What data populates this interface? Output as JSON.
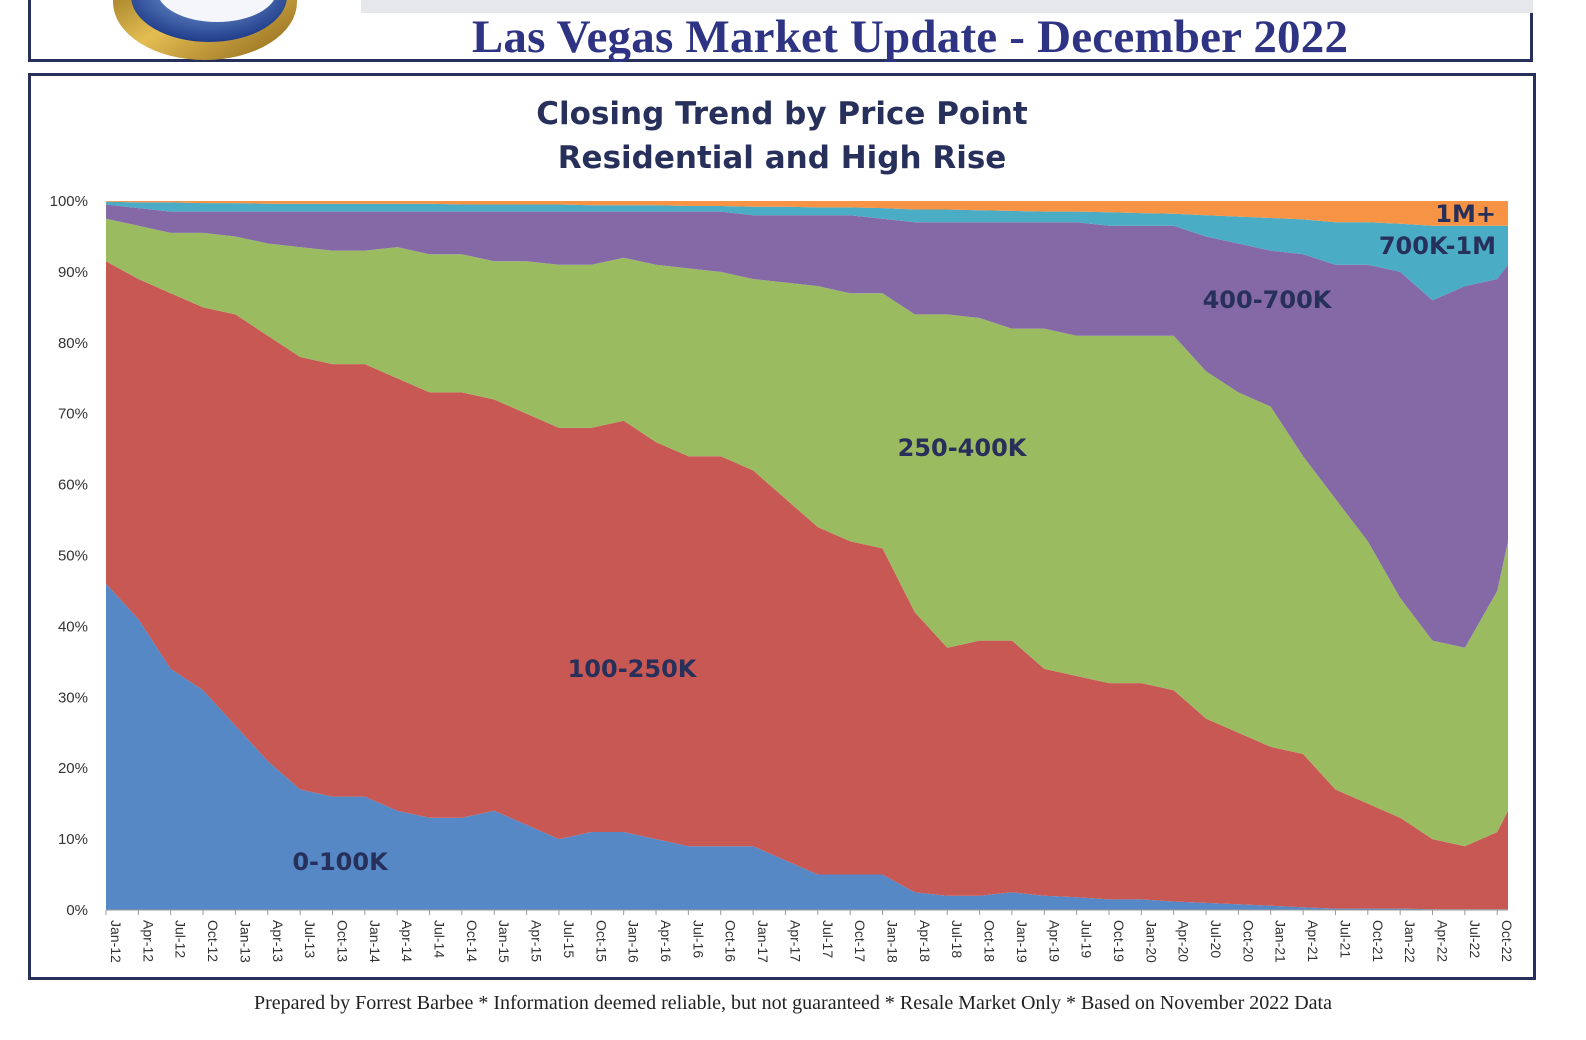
{
  "header": {
    "title": "Las Vegas Market Update - December 2022"
  },
  "footer": {
    "text": "Prepared by Forrest Barbee * Information deemed reliable, but not guaranteed * Resale Market Only * Based on November 2022 Data"
  },
  "colors": {
    "title": "#2e3483",
    "chart_title": "#27305a",
    "series": [
      "#5588c4",
      "#c75854",
      "#9bbb61",
      "#8469a6",
      "#4bacc6",
      "#f69344"
    ]
  },
  "chart_data": {
    "type": "area",
    "stacked": "percent",
    "title": "Closing Trend by Price Point",
    "subtitle": "Residential and High Rise",
    "xlabel": "",
    "ylabel": "",
    "ylim": [
      0,
      100
    ],
    "y_ticks": [
      "0%",
      "10%",
      "20%",
      "30%",
      "40%",
      "50%",
      "60%",
      "70%",
      "80%",
      "90%",
      "100%"
    ],
    "x_tick_labels": [
      "Jan-12",
      "Apr-12",
      "Jul-12",
      "Oct-12",
      "Jan-13",
      "Apr-13",
      "Jul-13",
      "Oct-13",
      "Jan-14",
      "Apr-14",
      "Jul-14",
      "Oct-14",
      "Jan-15",
      "Apr-15",
      "Jul-15",
      "Oct-15",
      "Jan-16",
      "Apr-16",
      "Jul-16",
      "Oct-16",
      "Jan-17",
      "Apr-17",
      "Jul-17",
      "Oct-17",
      "Jan-18",
      "Apr-18",
      "Jul-18",
      "Oct-18",
      "Jan-19",
      "Apr-19",
      "Jul-19",
      "Oct-19",
      "Jan-20",
      "Apr-20",
      "Jul-20",
      "Oct-20",
      "Jan-21",
      "Apr-21",
      "Jul-21",
      "Oct-21",
      "Jan-22",
      "Apr-22",
      "Jul-22",
      "Oct-22"
    ],
    "month_range": [
      "Jan-12",
      "Nov-22"
    ],
    "grid": false,
    "legend": "inline labels",
    "series_labels": [
      {
        "name": "0-100K"
      },
      {
        "name": "100-250K"
      },
      {
        "name": "250-400K"
      },
      {
        "name": "400-700K"
      },
      {
        "name": "700K-1M"
      },
      {
        "name": "1M+"
      }
    ],
    "cumulative_boundaries_note": "Top edge of each band as cumulative percent, sampled each quarter from Jan-12 to Oct-22 plus Nov-22",
    "cumulative_boundaries": {
      "0-100K": [
        46,
        41,
        34,
        31,
        26,
        21,
        17,
        16,
        16,
        14,
        13,
        13,
        14,
        12,
        10,
        11,
        11,
        10,
        9,
        9,
        9,
        7,
        5,
        5,
        5,
        2.5,
        2,
        2,
        2.5,
        2,
        1.8,
        1.5,
        1.5,
        1.2,
        1,
        0.8,
        0.6,
        0.4,
        0.2,
        0.2,
        0.2,
        0.1,
        0.1,
        0.1,
        0.1
      ],
      "100-250K": [
        91.5,
        89,
        87,
        85,
        84,
        81,
        78,
        77,
        77,
        75,
        73,
        73,
        72,
        70,
        68,
        68,
        69,
        66,
        64,
        64,
        62,
        58,
        54,
        52,
        51,
        42,
        37,
        38,
        38,
        34,
        33,
        32,
        32,
        31,
        27,
        25,
        23,
        22,
        17,
        15,
        13,
        10,
        9,
        11,
        14
      ],
      "250-400K": [
        97.5,
        96.5,
        95.5,
        95.5,
        95,
        94,
        93.5,
        93,
        93,
        93.5,
        92.5,
        92.5,
        91.5,
        91.5,
        91,
        91,
        92,
        91,
        90.5,
        90,
        89,
        88.5,
        88,
        87,
        87,
        84,
        84,
        83.5,
        82,
        82,
        81,
        81,
        81,
        81,
        76,
        73,
        71,
        64,
        58,
        52,
        44,
        38,
        37,
        45,
        52
      ],
      "400-700K": [
        99.5,
        99,
        98.5,
        98.5,
        98.5,
        98.5,
        98.5,
        98.5,
        98.5,
        98.5,
        98.5,
        98.5,
        98.5,
        98.5,
        98.5,
        98.5,
        98.5,
        98.5,
        98.5,
        98.5,
        98,
        98,
        98,
        98,
        97.5,
        97,
        97,
        97,
        97,
        97,
        97,
        96.5,
        96.5,
        96.5,
        95,
        94,
        93,
        92.5,
        91,
        91,
        90,
        86,
        88,
        89,
        91
      ],
      "700K-1M": [
        99.9,
        99.8,
        99.8,
        99.7,
        99.7,
        99.6,
        99.6,
        99.6,
        99.6,
        99.6,
        99.6,
        99.5,
        99.5,
        99.5,
        99.5,
        99.4,
        99.4,
        99.4,
        99.3,
        99.3,
        99.2,
        99.2,
        99.1,
        99.1,
        99,
        98.8,
        98.8,
        98.7,
        98.6,
        98.5,
        98.5,
        98.4,
        98.3,
        98.2,
        98,
        97.8,
        97.6,
        97.4,
        97,
        97,
        96.8,
        96.5,
        96.5,
        96.5,
        96.5
      ],
      "1M+": [
        100,
        100,
        100,
        100,
        100,
        100,
        100,
        100,
        100,
        100,
        100,
        100,
        100,
        100,
        100,
        100,
        100,
        100,
        100,
        100,
        100,
        100,
        100,
        100,
        100,
        100,
        100,
        100,
        100,
        100,
        100,
        100,
        100,
        100,
        100,
        100,
        100,
        100,
        100,
        100,
        100,
        100,
        100,
        100,
        100
      ]
    }
  }
}
